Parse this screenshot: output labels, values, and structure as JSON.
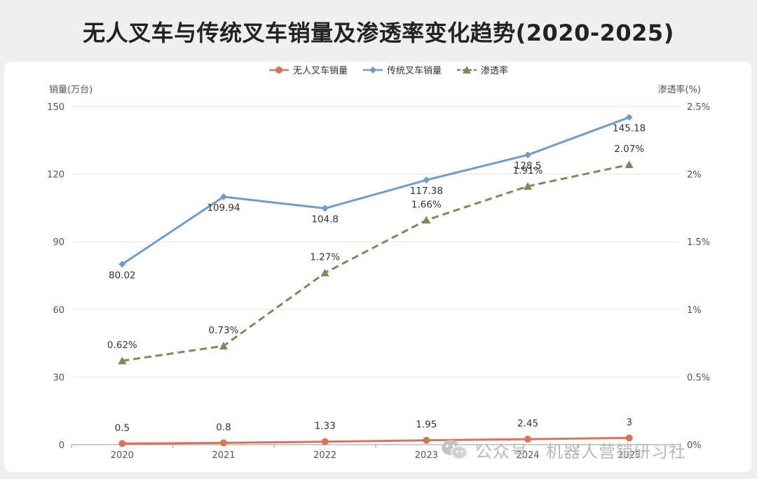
{
  "chart_data": {
    "type": "line",
    "title": "无人叉车与传统叉车销量及渗透率变化趋势(2020-2025)",
    "categories": [
      "2020",
      "2021",
      "2022",
      "2023",
      "2024",
      "2025"
    ],
    "y_left": {
      "label": "销量(万台)",
      "range": [
        0,
        150
      ],
      "ticks": [
        "0",
        "30",
        "60",
        "90",
        "120",
        "150"
      ]
    },
    "y_right": {
      "label": "渗透率(%)",
      "range": [
        0,
        2.5
      ],
      "ticks": [
        "0%",
        "0.5%",
        "1%",
        "1.5%",
        "2%",
        "2.5%"
      ]
    },
    "legend_position": "top-center",
    "grid": true,
    "series": [
      {
        "name": "无人叉车销量",
        "axis": "left",
        "color": "#d9745a",
        "marker": "circle",
        "dash": false,
        "values": [
          0.5,
          0.8,
          1.33,
          1.95,
          2.45,
          3
        ],
        "labels": [
          "0.5",
          "0.8",
          "1.33",
          "1.95",
          "2.45",
          "3"
        ]
      },
      {
        "name": "传统叉车销量",
        "axis": "left",
        "color": "#6f9ccb",
        "marker": "diamond",
        "dash": false,
        "values": [
          80.02,
          109.94,
          104.8,
          117.38,
          128.5,
          145.18
        ],
        "labels": [
          "80.02",
          "109.94",
          "104.8",
          "117.38",
          "128.5",
          "145.18"
        ]
      },
      {
        "name": "渗透率",
        "axis": "right",
        "color": "#768f5a",
        "marker": "triangle",
        "dash": true,
        "values": [
          0.62,
          0.73,
          1.27,
          1.66,
          1.91,
          2.07
        ],
        "labels": [
          "0.62%",
          "0.73%",
          "1.27%",
          "1.66%",
          "1.91%",
          "2.07%"
        ]
      }
    ]
  },
  "watermark": {
    "text": "公众号 · 机器人营销研习社",
    "icon": "wechat-icon"
  }
}
